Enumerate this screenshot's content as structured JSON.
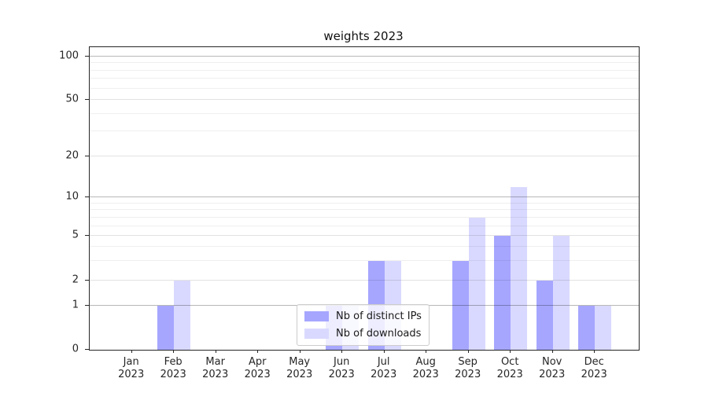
{
  "chart_data": {
    "type": "bar",
    "title": "weights 2023",
    "categories": [
      {
        "month": "Jan",
        "year": "2023"
      },
      {
        "month": "Feb",
        "year": "2023"
      },
      {
        "month": "Mar",
        "year": "2023"
      },
      {
        "month": "Apr",
        "year": "2023"
      },
      {
        "month": "May",
        "year": "2023"
      },
      {
        "month": "Jun",
        "year": "2023"
      },
      {
        "month": "Jul",
        "year": "2023"
      },
      {
        "month": "Aug",
        "year": "2023"
      },
      {
        "month": "Sep",
        "year": "2023"
      },
      {
        "month": "Oct",
        "year": "2023"
      },
      {
        "month": "Nov",
        "year": "2023"
      },
      {
        "month": "Dec",
        "year": "2023"
      }
    ],
    "series": [
      {
        "key": "distinct-ips",
        "name": "Nb of distinct IPs",
        "color": "#a6a6ff",
        "values": [
          0,
          1,
          0,
          0,
          0,
          1,
          3,
          0,
          3,
          5,
          2,
          1
        ]
      },
      {
        "key": "downloads",
        "name": "Nb of downloads",
        "color": "#d9d9ff",
        "values": [
          0,
          2,
          0,
          0,
          0,
          1,
          3,
          0,
          7,
          12,
          5,
          1
        ]
      }
    ],
    "yticks": [
      0,
      1,
      2,
      5,
      10,
      20,
      50,
      100
    ],
    "yscale": "symlog",
    "ylim": [
      0,
      110
    ],
    "xlabel": "",
    "ylabel": "",
    "grid": true,
    "legend_position": "lower center"
  },
  "colors": {
    "bar_distinct_ips": "#a6a6ff",
    "bar_downloads": "#d9d9ff",
    "grid_major": "#b8b8b8",
    "grid_labeled": "#e2e2e2",
    "grid_minor": "#efefef",
    "axis": "#262626",
    "legend_border": "#cccccc"
  }
}
